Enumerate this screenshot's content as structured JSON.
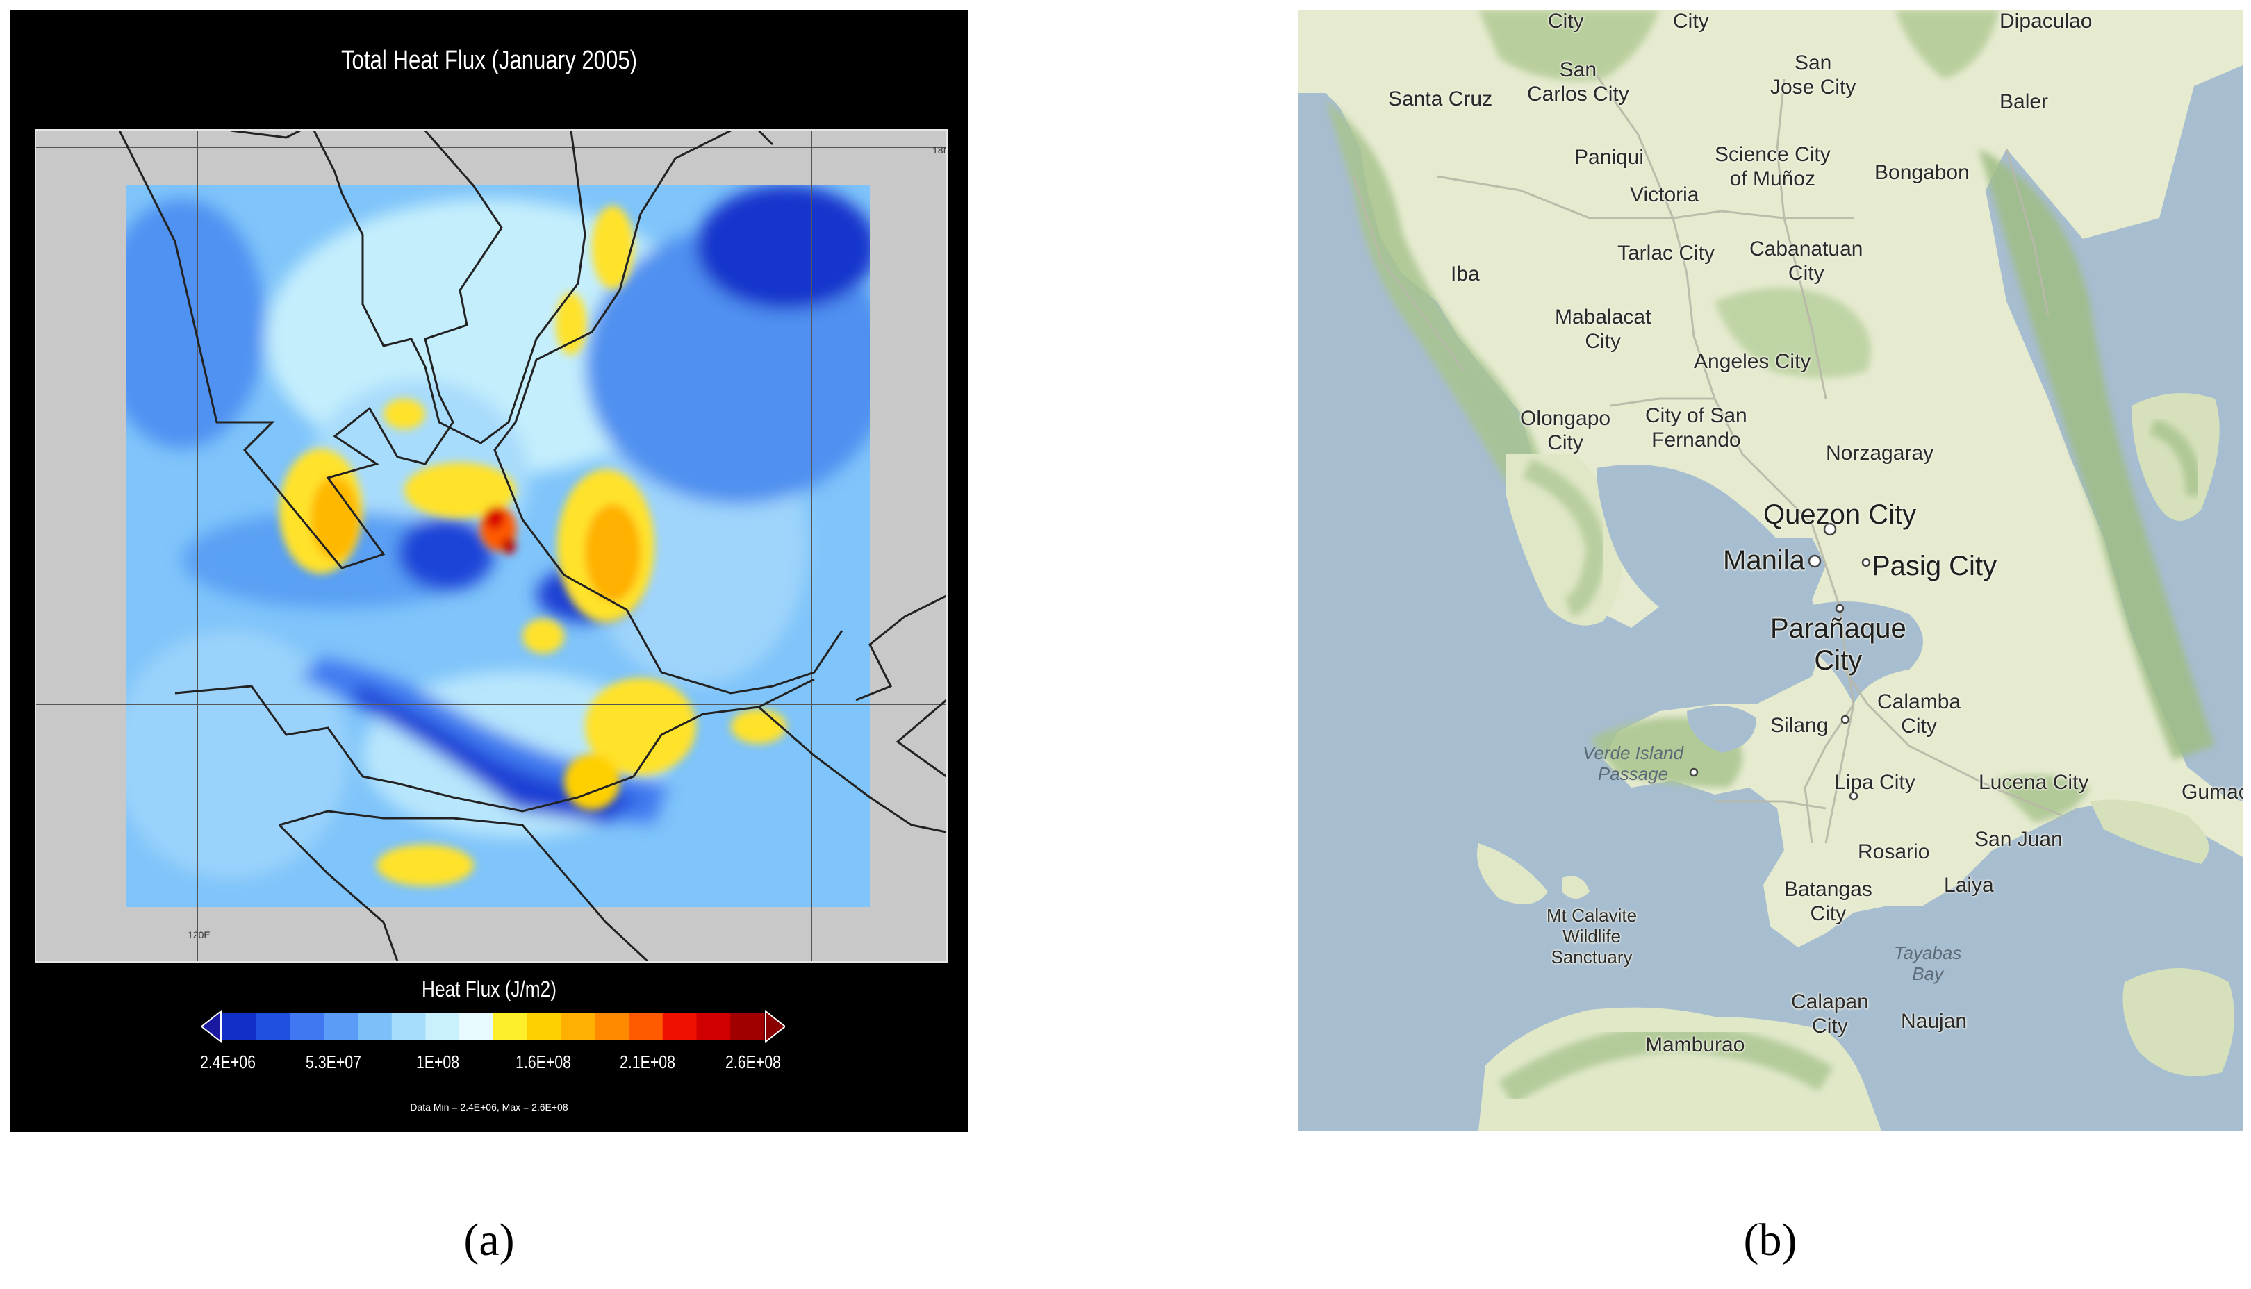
{
  "panel_a": {
    "title": "Total Heat Flux (January 2005)",
    "lat_label": "18N",
    "lon_label": "120E",
    "colorbar": {
      "title": "Heat Flux (J/m2)",
      "colors": [
        "#1030c8",
        "#2050e0",
        "#3f78f0",
        "#5a9cf8",
        "#7cc0fa",
        "#a6dcfc",
        "#c8f0fd",
        "#e8fafe",
        "#ffef2a",
        "#ffd000",
        "#ffb000",
        "#ff8a00",
        "#ff5a00",
        "#f01000",
        "#d00000",
        "#a00000"
      ],
      "ticks": [
        "2.4E+06",
        "5.3E+07",
        "1E+08",
        "1.6E+08",
        "2.1E+08",
        "2.6E+08"
      ],
      "data_range": "Data Min = 2.4E+06, Max = 2.6E+08"
    }
  },
  "panel_b": {
    "places": {
      "city1": "City",
      "city2": "City",
      "dipaculao": "Dipaculao",
      "san_carlos": "San\nCarlos City",
      "santa_cruz": "Santa Cruz",
      "san_jose": "San\nJose City",
      "baler": "Baler",
      "paniqui": "Paniqui",
      "science_city": "Science City\nof Muñoz",
      "victoria": "Victoria",
      "bongabon": "Bongabon",
      "tarlac": "Tarlac City",
      "cabanatuan": "Cabanatuan\nCity",
      "iba": "Iba",
      "mabalacat": "Mabalacat\nCity",
      "angeles": "Angeles City",
      "olongapo": "Olongapo\nCity",
      "san_fernando": "City of San\nFernando",
      "norzagaray": "Norzagaray",
      "quezon": "Quezon City",
      "manila": "Manila",
      "pasig": "Pasig City",
      "paranaque": "Parañaque\nCity",
      "calamba": "Calamba\nCity",
      "silang": "Silang",
      "verde": "Verde Island\nPassage",
      "lipa": "Lipa City",
      "lucena": "Lucena City",
      "gumaca": "Gumac",
      "san_juan": "San Juan",
      "rosario": "Rosario",
      "batangas": "Batangas\nCity",
      "laiya": "Laiya",
      "calavite": "Mt Calavite\nWildlife\nSanctuary",
      "tayabas": "Tayabas\nBay",
      "calapan": "Calapan\nCity",
      "naujan": "Naujan",
      "mamburao": "Mamburao"
    }
  },
  "captions": {
    "a": "(a)",
    "b": "(b)"
  }
}
